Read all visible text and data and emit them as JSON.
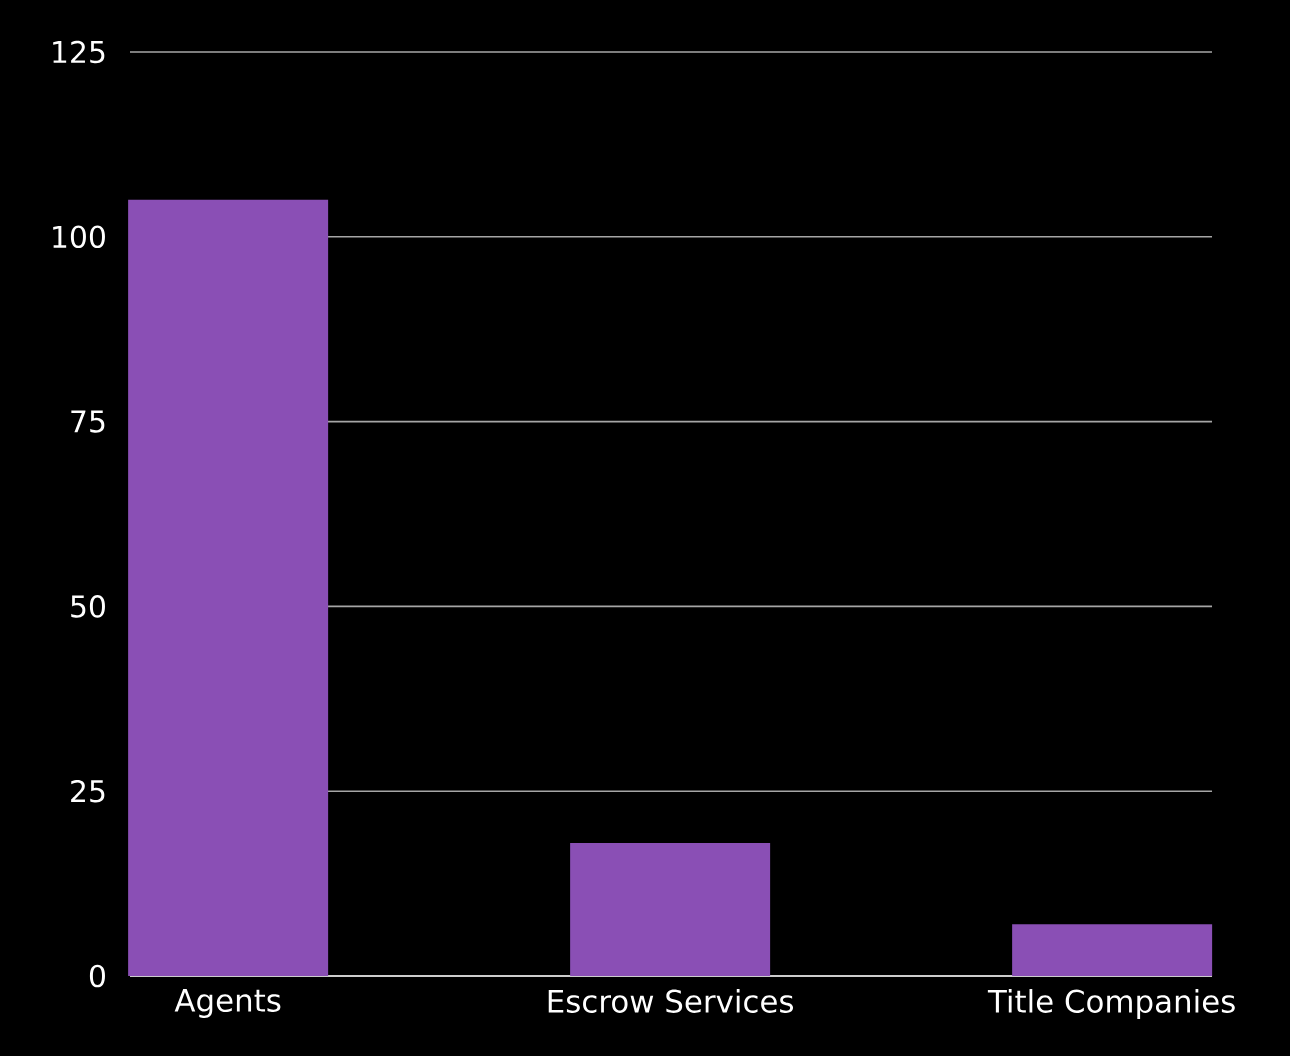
{
  "chart_data": {
    "type": "bar",
    "categories": [
      "Agents",
      "Escrow Services",
      "Title Companies"
    ],
    "values": [
      105,
      18,
      7
    ],
    "color": "#8a4fb5",
    "ylim": [
      0,
      125
    ],
    "yticks": [
      0,
      25,
      50,
      75,
      100,
      125
    ],
    "grid": "y"
  }
}
